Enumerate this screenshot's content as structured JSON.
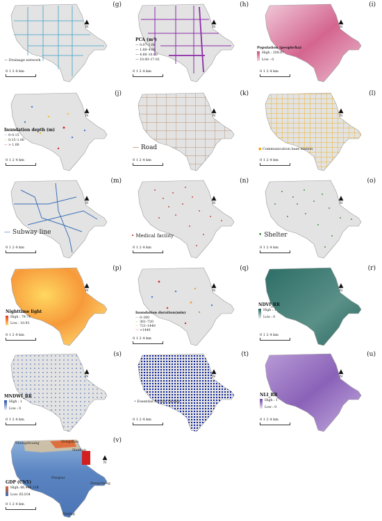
{
  "colors": {
    "base": "#e3e3e3",
    "outline": "#9a9a9a"
  },
  "common": {
    "north": "N",
    "scale_label": "0  1  2      4 km"
  },
  "panels": {
    "g": {
      "letter": "(g)",
      "legend": "Drainage network",
      "color": "#3aa0c8",
      "icon": "line-legend-icon"
    },
    "h": {
      "letter": "(h)",
      "title": "PCA (m³)",
      "items": [
        "0.07–1.68",
        "1.68–4.68",
        "4.68–10.00",
        "10.00–17.02"
      ],
      "color": "#8b2aa8"
    },
    "i": {
      "letter": "(i)",
      "title": "Population (people/ha)",
      "high": "High : 208.87",
      "low": "Low : 0",
      "ramp": [
        "#c84a7a",
        "#f3d6e3"
      ]
    },
    "j": {
      "letter": "(j)",
      "title": "Inundation depth (m)",
      "items": [
        "0–0.15",
        "0.15–1.00",
        "> 1.00"
      ],
      "item_colors": [
        "#4a7bd6",
        "#f0c030",
        "#d62a2a"
      ]
    },
    "k": {
      "letter": "(k)",
      "legend": "Road",
      "color": "#a4683a"
    },
    "l": {
      "letter": "(l)",
      "legend": "Communication base station",
      "color": "#f0a800"
    },
    "m": {
      "letter": "(m)",
      "legend": "Subway line",
      "color": "#3a6fb8"
    },
    "n": {
      "letter": "(n)",
      "legend": "Medical facility",
      "color": "#c0201c"
    },
    "o": {
      "letter": "(o)",
      "legend": "Shelter",
      "color": "#1e7a1e"
    },
    "p": {
      "letter": "(p)",
      "title": "Nighttime light",
      "high": "High : 79.74",
      "low": "Low : 10.93",
      "ramp": [
        "#e8341c",
        "#ffe070"
      ]
    },
    "q": {
      "letter": "(q)",
      "title": "Inundation duration(min)",
      "items": [
        "0–360",
        "361–720",
        "721–1440",
        ">1440"
      ],
      "item_colors": [
        "#4a7bd6",
        "#7fbf6a",
        "#f0a030",
        "#d62a2a"
      ]
    },
    "r": {
      "letter": "(r)",
      "title": "NDVI_RR",
      "high": "High : 1",
      "low": "Low : 0",
      "ramp": [
        "#1f5e58",
        "#e8f0ee"
      ]
    },
    "s": {
      "letter": "(s)",
      "title": "MNDWI_RR",
      "high": "High : 1",
      "low": "Low : 0",
      "ramp": [
        "#1f4aa8",
        "#e6ecf8"
      ]
    },
    "t": {
      "letter": "(t)",
      "legend": "Essential service facility",
      "color": "#0a1e9a"
    },
    "u": {
      "letter": "(u)",
      "title": "NLI_RR",
      "high": "High : 1",
      "low": "Low : 0",
      "ramp": [
        "#6a3ea0",
        "#ece4f4"
      ]
    },
    "v": {
      "letter": "(v)",
      "title": "GDP (CNY)",
      "high": "High: 66,446,116",
      "low": "Low: 65,034",
      "ramp": [
        "#e2602a",
        "#3d6fb5"
      ],
      "places": [
        "Shangzhuang",
        "Dongshan",
        "Haidian",
        "Fengtai",
        "Dongcheng",
        "Daxing"
      ]
    }
  }
}
